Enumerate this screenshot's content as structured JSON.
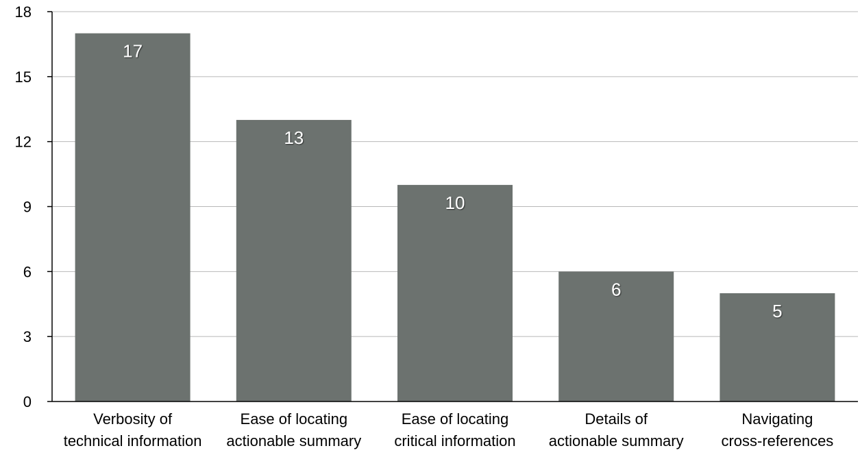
{
  "chart_data": {
    "type": "bar",
    "title": "",
    "xlabel": "",
    "ylabel": "",
    "categories": [
      [
        "Verbosity of",
        "technical information"
      ],
      [
        "Ease of locating",
        "actionable summary"
      ],
      [
        "Ease of locating",
        "critical information"
      ],
      [
        "Details of",
        "actionable summary"
      ],
      [
        "Navigating",
        "cross-references"
      ]
    ],
    "values": [
      17,
      13,
      10,
      6,
      5
    ],
    "data_labels": [
      "17",
      "13",
      "10",
      "6",
      "5"
    ],
    "ylim": [
      0,
      18
    ],
    "yticks": [
      0,
      3,
      6,
      9,
      12,
      15,
      18
    ],
    "grid": true,
    "legend": "none",
    "colors": {
      "bar": "#6c726f",
      "grid": "#b8b8b8",
      "axis": "#000000",
      "data_label": "#ffffff"
    }
  }
}
